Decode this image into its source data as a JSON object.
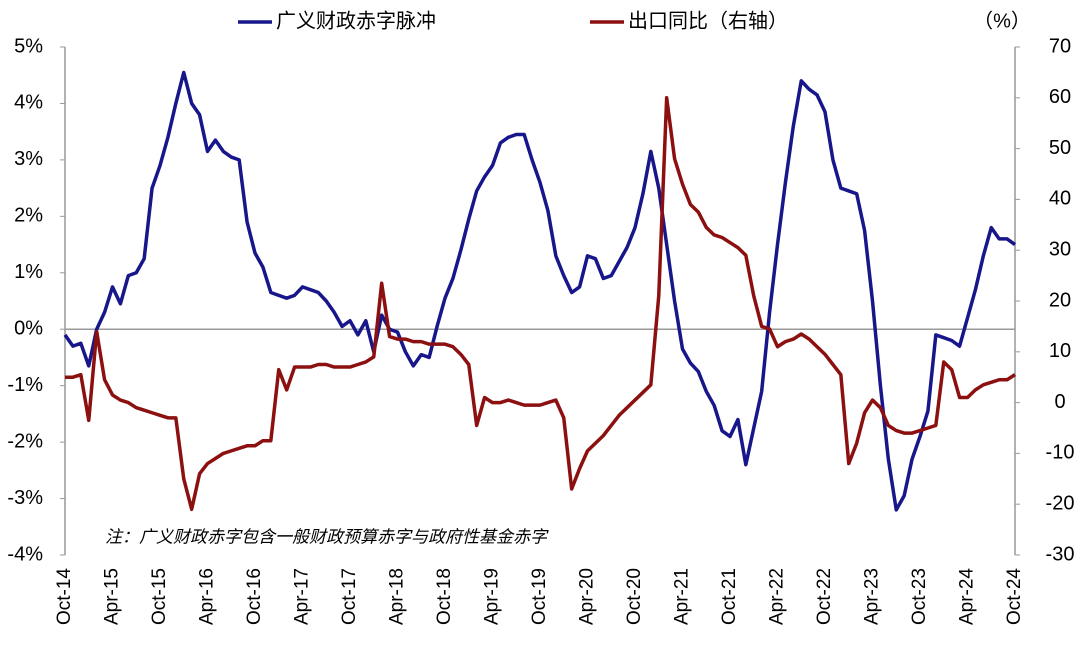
{
  "chart_data": {
    "type": "line",
    "unit_label": "（%）",
    "note": "注：广义财政赤字包含一般财政预算赤字与政府性基金赤字",
    "categories": [
      "Oct-14",
      null,
      null,
      null,
      null,
      null,
      "Apr-15",
      null,
      null,
      null,
      null,
      null,
      "Oct-15",
      null,
      null,
      null,
      null,
      null,
      "Apr-16",
      null,
      null,
      null,
      null,
      null,
      "Oct-16",
      null,
      null,
      null,
      null,
      null,
      "Apr-17",
      null,
      null,
      null,
      null,
      null,
      "Oct-17",
      null,
      null,
      null,
      null,
      null,
      "Apr-18",
      null,
      null,
      null,
      null,
      null,
      "Oct-18",
      null,
      null,
      null,
      null,
      null,
      "Apr-19",
      null,
      null,
      null,
      null,
      null,
      "Oct-19",
      null,
      null,
      null,
      null,
      null,
      "Apr-20",
      null,
      null,
      null,
      null,
      null,
      "Oct-20",
      null,
      null,
      null,
      null,
      null,
      "Apr-21",
      null,
      null,
      null,
      null,
      null,
      "Oct-21",
      null,
      null,
      null,
      null,
      null,
      "Apr-22",
      null,
      null,
      null,
      null,
      null,
      "Oct-22",
      null,
      null,
      null,
      null,
      null,
      "Apr-23",
      null,
      null,
      null,
      null,
      null,
      "Oct-23",
      null,
      null,
      null,
      null,
      null,
      "Apr-24",
      null,
      null,
      null,
      null,
      null,
      "Oct-24"
    ],
    "series": [
      {
        "name": "广义财政赤字脉冲",
        "color": "#17168a",
        "values": [
          -0.1,
          -0.3,
          -0.25,
          -0.65,
          0.0,
          0.3,
          0.75,
          0.45,
          0.95,
          1.0,
          1.25,
          2.5,
          2.9,
          3.4,
          4.0,
          4.55,
          4.0,
          3.8,
          3.15,
          3.35,
          3.15,
          3.05,
          3.0,
          1.9,
          1.35,
          1.1,
          0.65,
          0.6,
          0.55,
          0.6,
          0.75,
          0.7,
          0.65,
          0.5,
          0.3,
          0.05,
          0.15,
          -0.1,
          0.15,
          -0.4,
          0.25,
          0.0,
          -0.05,
          -0.4,
          -0.65,
          -0.45,
          -0.5,
          0.05,
          0.55,
          0.9,
          1.4,
          1.95,
          2.45,
          2.7,
          2.9,
          3.3,
          3.4,
          3.45,
          3.45,
          3.0,
          2.6,
          2.1,
          1.3,
          0.95,
          0.65,
          0.75,
          1.3,
          1.25,
          0.9,
          0.95,
          1.2,
          1.45,
          1.8,
          2.4,
          3.15,
          2.5,
          1.5,
          0.5,
          -0.35,
          -0.6,
          -0.75,
          -1.1,
          -1.35,
          -1.8,
          -1.9,
          -1.6,
          -2.4,
          -1.75,
          -1.1,
          0.3,
          1.5,
          2.6,
          3.6,
          4.4,
          4.25,
          4.15,
          3.85,
          3.0,
          2.5,
          2.45,
          2.4,
          1.75,
          0.5,
          -1.0,
          -2.3,
          -3.2,
          -2.95,
          -2.3,
          -1.9,
          -1.45,
          -0.1,
          -0.15,
          -0.2,
          -0.3,
          0.2,
          0.7,
          1.3,
          1.8,
          1.6,
          1.6,
          1.5
        ]
      },
      {
        "name": "出口同比（右轴）",
        "color": "#8c1010",
        "axis": "y2",
        "values": [
          5,
          5,
          5.5,
          -3.5,
          14,
          4.5,
          1.5,
          0.5,
          0,
          -1,
          -1.5,
          -2,
          -2.5,
          -3,
          -3,
          -15,
          -21,
          -14,
          -12,
          -11,
          -10,
          -9.5,
          -9,
          -8.5,
          -8.5,
          -7.5,
          -7.5,
          6.5,
          2.5,
          7,
          7,
          7,
          7.5,
          7.5,
          7,
          7,
          7,
          7.5,
          8,
          9,
          23.5,
          13,
          12.5,
          12.5,
          12,
          12,
          11.5,
          11.5,
          11.5,
          11,
          9.5,
          7.5,
          -4.5,
          1,
          0,
          0,
          0.5,
          0,
          -0.5,
          -0.5,
          -0.5,
          0,
          0.5,
          -3,
          -17,
          -13,
          -9.5,
          -8,
          -6.5,
          -4.5,
          -2.5,
          -1,
          0.5,
          2,
          3.5,
          21,
          60,
          48,
          43,
          39,
          37.5,
          34.5,
          33,
          32.5,
          31.5,
          30.5,
          29,
          21,
          15,
          14.5,
          11,
          12,
          12.5,
          13.5,
          12.5,
          11,
          9.5,
          7.5,
          5.5,
          -12,
          -8,
          -2,
          0.5,
          -1,
          -4.5,
          -5.5,
          -6,
          -6,
          -5.5,
          -5,
          -4.5,
          8,
          6.5,
          1,
          1,
          2.5,
          3.5,
          4,
          4.5,
          4.5,
          5.5
        ]
      }
    ],
    "ylim": [
      -4,
      5
    ],
    "yticks": [
      {
        "value": 5,
        "label": "5%"
      },
      {
        "value": 4,
        "label": "4%"
      },
      {
        "value": 3,
        "label": "3%"
      },
      {
        "value": 2,
        "label": "2%"
      },
      {
        "value": 1,
        "label": "1%"
      },
      {
        "value": 0,
        "label": "0%"
      },
      {
        "value": -1,
        "label": "-1%"
      },
      {
        "value": -2,
        "label": "-2%"
      },
      {
        "value": -3,
        "label": "-3%"
      },
      {
        "value": -4,
        "label": "-4%"
      }
    ],
    "y2lim": [
      -30,
      70
    ],
    "y2ticks": [
      70,
      60,
      50,
      40,
      30,
      20,
      10,
      0,
      -10,
      -20,
      -30
    ],
    "negative_tick_color": "#ff0000",
    "legend": "top"
  }
}
